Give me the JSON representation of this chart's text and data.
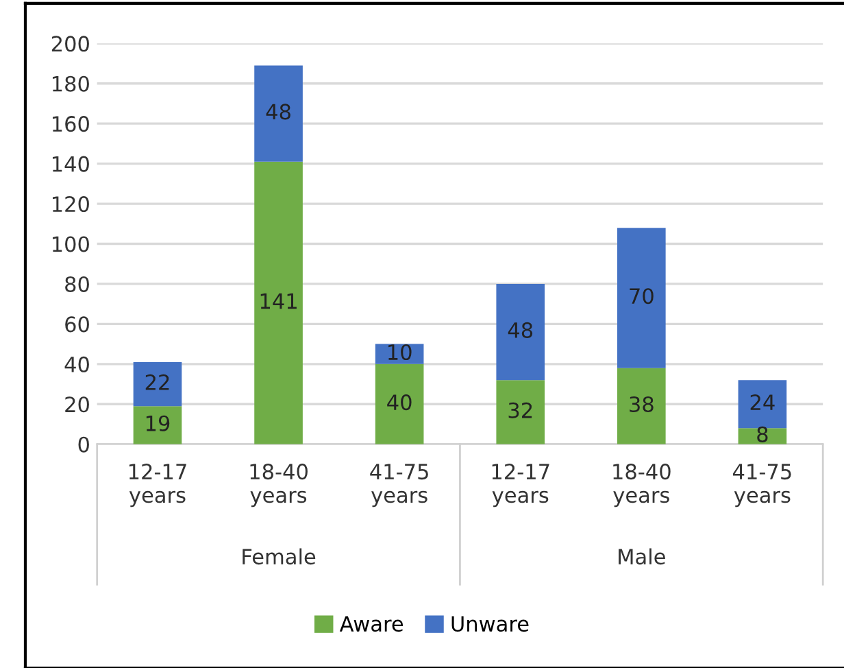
{
  "chart_data": {
    "type": "bar",
    "stacked": true,
    "categories": [
      "12-17\nyears",
      "18-40\nyears",
      "41-75\nyears",
      "12-17\nyears",
      "18-40\nyears",
      "41-75\nyears"
    ],
    "series": [
      {
        "name": "Aware",
        "color": "#70ad47",
        "values": [
          19,
          141,
          40,
          32,
          38,
          8
        ]
      },
      {
        "name": "Unware",
        "color": "#4472c4",
        "values": [
          22,
          48,
          10,
          48,
          70,
          24
        ]
      }
    ],
    "annotations": [
      "Female",
      "Male"
    ],
    "ylim": [
      0,
      200
    ],
    "yticks": [
      0,
      20,
      40,
      60,
      80,
      100,
      120,
      140,
      160,
      180,
      200
    ],
    "grid": "y",
    "legend": "bottom",
    "data_labels": true
  }
}
